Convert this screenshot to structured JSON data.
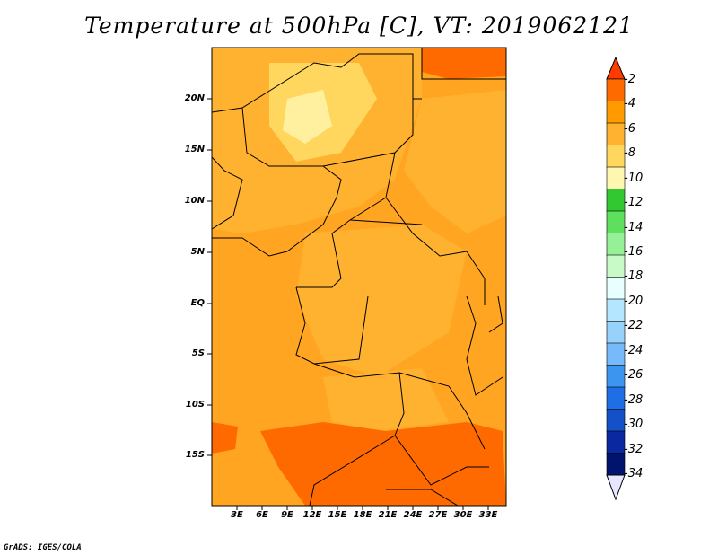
{
  "title": "Temperature at 500hPa [C], VT: 2019062121",
  "credit": "GrADS: IGES/COLA",
  "map": {
    "lat_labels": [
      "20N",
      "15N",
      "10N",
      "5N",
      "EQ",
      "5S",
      "10S",
      "15S"
    ],
    "lon_labels": [
      "3E",
      "6E",
      "9E",
      "12E",
      "15E",
      "18E",
      "21E",
      "24E",
      "27E",
      "30E",
      "33E"
    ]
  },
  "colorbar": {
    "labels": [
      "-2",
      "-4",
      "-6",
      "-8",
      "-10",
      "-12",
      "-14",
      "-16",
      "-18",
      "-20",
      "-22",
      "-24",
      "-26",
      "-28",
      "-30",
      "-32",
      "-34"
    ],
    "colors": [
      "#ff3b00",
      "#ff6a00",
      "#ff9a00",
      "#ffb22f",
      "#ffd65e",
      "#fff6b0",
      "#32c832",
      "#5ee05e",
      "#96f096",
      "#c8fac8",
      "#e8ffff",
      "#b4e6ff",
      "#96d2fa",
      "#78b9fa",
      "#3c96f0",
      "#1e6ee6",
      "#1450c8",
      "#0a28a0",
      "#00146e",
      "#e6e6ff"
    ]
  },
  "colors": {
    "ocean_field": "#ffa521",
    "warm_field": "#ff6a00",
    "cool_field": "#ffd65e",
    "border": "#000000"
  }
}
